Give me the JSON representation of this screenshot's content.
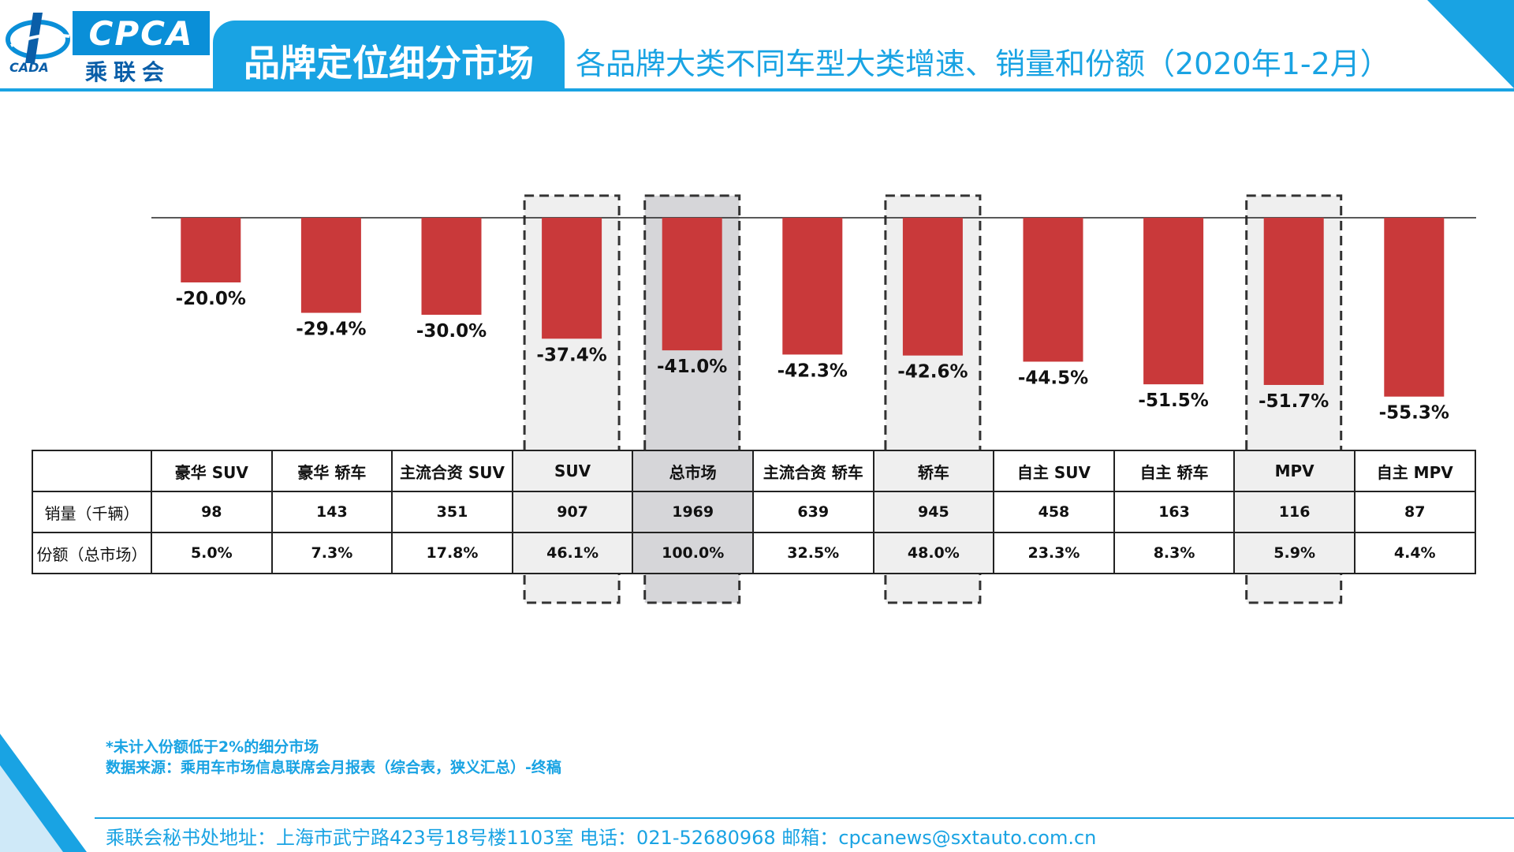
{
  "header": {
    "logo_text": "CPCA",
    "logo_cn": "乘联会",
    "logo_small": "CADA",
    "title": "品牌定位细分市场",
    "subtitle": "各品牌大类不同车型大类增速、销量和份额（2020年1-2月）"
  },
  "colors": {
    "accent": "#19a3e3",
    "bar": "#c9393a",
    "highlight_light": "#efefef",
    "highlight_dark": "#d6d6d9"
  },
  "chart_data": {
    "type": "bar",
    "categories": [
      "豪华 SUV",
      "豪华 轿车",
      "主流合资 SUV",
      "SUV",
      "总市场",
      "主流合资 轿车",
      "轿车",
      "自主 SUV",
      "自主 轿车",
      "MPV",
      "自主 MPV"
    ],
    "values": [
      -20.0,
      -29.4,
      -30.0,
      -37.4,
      -41.0,
      -42.3,
      -42.6,
      -44.5,
      -51.5,
      -51.7,
      -55.3
    ],
    "value_labels": [
      "-20.0%",
      "-29.4%",
      "-30.0%",
      "-37.4%",
      "-41.0%",
      "-42.3%",
      "-42.6%",
      "-44.5%",
      "-51.5%",
      "-51.7%",
      "-55.3%"
    ],
    "ylim": [
      -60,
      0
    ],
    "highlighted": [
      3,
      4,
      6,
      9
    ],
    "highlight_filled_dark": [
      4
    ]
  },
  "table": {
    "row_labels": [
      "销量（千辆）",
      "份额（总市场）"
    ],
    "sales": [
      "98",
      "143",
      "351",
      "907",
      "1969",
      "639",
      "945",
      "458",
      "163",
      "116",
      "87"
    ],
    "share": [
      "5.0%",
      "7.3%",
      "17.8%",
      "46.1%",
      "100.0%",
      "32.5%",
      "48.0%",
      "23.3%",
      "8.3%",
      "5.9%",
      "4.4%"
    ]
  },
  "notes": {
    "note1": "*未计入份额低于2%的细分市场",
    "note2": "数据来源：乘用车市场信息联席会月报表（综合表，狭义汇总）-终稿"
  },
  "footer": "乘联会秘书处地址：上海市武宁路423号18号楼1103室  电话：021-52680968   邮箱：cpcanews@sxtauto.com.cn"
}
